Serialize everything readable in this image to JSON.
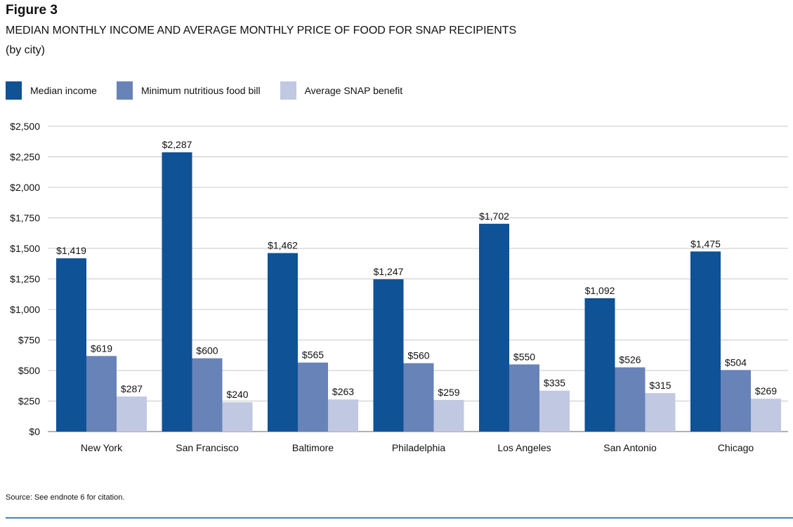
{
  "figure_label": "Figure 3",
  "title": "MEDIAN MONTHLY INCOME AND AVERAGE MONTHLY PRICE OF FOOD FOR SNAP RECIPIENTS",
  "subtitle": "(by city)",
  "source": "Source: See endnote 6 for citation.",
  "chart_data": {
    "type": "bar",
    "title": "MEDIAN MONTHLY INCOME AND AVERAGE MONTHLY PRICE OF FOOD FOR SNAP RECIPIENTS",
    "xlabel": "",
    "ylabel": "",
    "ylim": [
      0,
      2500
    ],
    "yticks": [
      0,
      250,
      500,
      750,
      1000,
      1250,
      1500,
      1750,
      2000,
      2250,
      2500
    ],
    "ytick_labels": [
      "$0",
      "$250",
      "$500",
      "$750",
      "$1,000",
      "$1,250",
      "$1,500",
      "$1,750",
      "$2,000",
      "$2,250",
      "$2,500"
    ],
    "grid": true,
    "legend_placement": "top-left",
    "categories": [
      "New York",
      "San Francisco",
      "Baltimore",
      "Philadelphia",
      "Los Angeles",
      "San Antonio",
      "Chicago"
    ],
    "series": [
      {
        "name": "Median income",
        "color": "#0f5296",
        "values": [
          1419,
          2287,
          1462,
          1247,
          1702,
          1092,
          1475
        ],
        "labels": [
          "$1,419",
          "$2,287",
          "$1,462",
          "$1,247",
          "$1,702",
          "$1,092",
          "$1,475"
        ]
      },
      {
        "name": "Minimum nutritious food bill",
        "color": "#6783b8",
        "values": [
          619,
          600,
          565,
          560,
          550,
          526,
          504
        ],
        "labels": [
          "$619",
          "$600",
          "$565",
          "$560",
          "$550",
          "$526",
          "$504"
        ]
      },
      {
        "name": "Average SNAP benefit",
        "color": "#c1c8e2",
        "values": [
          287,
          240,
          263,
          259,
          335,
          315,
          269
        ],
        "labels": [
          "$287",
          "$240",
          "$263",
          "$259",
          "$335",
          "$315",
          "$269"
        ]
      }
    ]
  }
}
